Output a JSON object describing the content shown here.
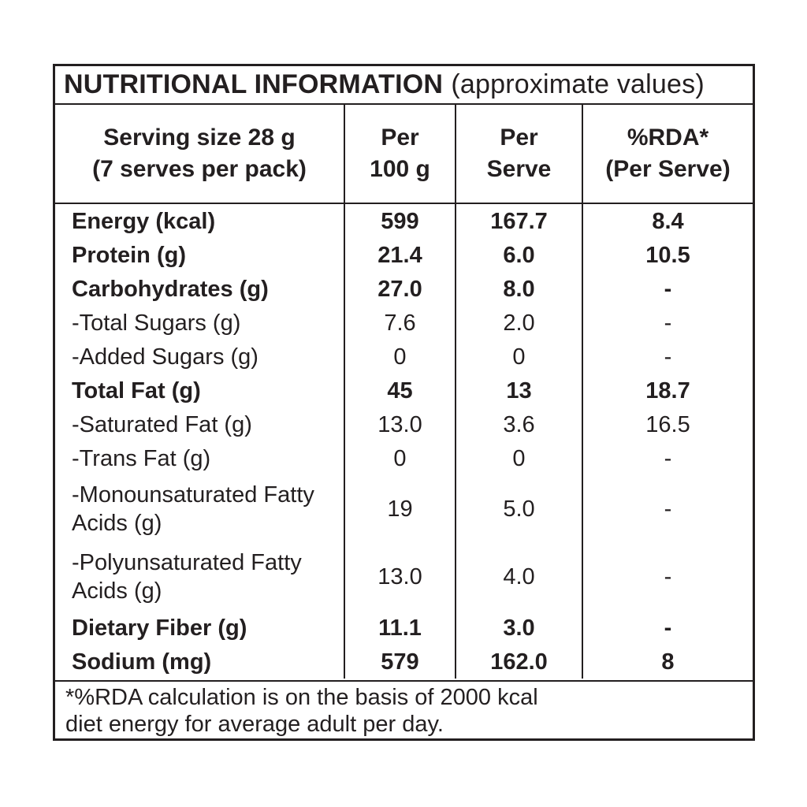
{
  "colors": {
    "ink": "#231f20",
    "background": "#ffffff"
  },
  "table": {
    "title": {
      "main": "NUTRITIONAL INFORMATION",
      "suffix": "(approximate values)"
    },
    "columns": {
      "serving": {
        "line1": "Serving size 28 g",
        "line2": "(7 serves per pack)"
      },
      "per100": {
        "line1": "Per",
        "line2": "100 g"
      },
      "perServe": {
        "line1": "Per",
        "line2": "Serve"
      },
      "rda": {
        "line1": "%RDA*",
        "line2": "(Per Serve)"
      }
    },
    "rows": [
      {
        "label": "Energy (kcal)",
        "per100": "599",
        "perServe": "167.7",
        "rda": "8.4"
      },
      {
        "label": "Protein (g)",
        "per100": "21.4",
        "perServe": "6.0",
        "rda": "10.5"
      },
      {
        "label": "Carbohydrates (g)",
        "per100": "27.0",
        "perServe": "8.0",
        "rda": "-"
      },
      {
        "label": "-Total Sugars (g)",
        "per100": "7.6",
        "perServe": "2.0",
        "rda": "-"
      },
      {
        "label": "-Added Sugars (g)",
        "per100": "0",
        "perServe": "0",
        "rda": "-"
      },
      {
        "label": "Total Fat (g)",
        "per100": "45",
        "perServe": "13",
        "rda": "18.7"
      },
      {
        "label": "-Saturated Fat (g)",
        "per100": "13.0",
        "perServe": "3.6",
        "rda": "16.5"
      },
      {
        "label": "-Trans Fat (g)",
        "per100": "0",
        "perServe": "0",
        "rda": "-"
      },
      {
        "label": "-Monounsaturated Fatty Acids (g)",
        "per100": "19",
        "perServe": "5.0",
        "rda": "-"
      },
      {
        "label": "-Polyunsaturated Fatty Acids (g)",
        "per100": "13.0",
        "perServe": "4.0",
        "rda": "-"
      },
      {
        "label": "Dietary Fiber (g)",
        "per100": "11.1",
        "perServe": "3.0",
        "rda": "-"
      },
      {
        "label": "Sodium (mg)",
        "per100": "579",
        "perServe": "162.0",
        "rda": "8"
      }
    ],
    "footnote": {
      "line1": "*%RDA calculation is on the basis of 2000 kcal",
      "line2": "diet energy for average adult per day."
    }
  }
}
